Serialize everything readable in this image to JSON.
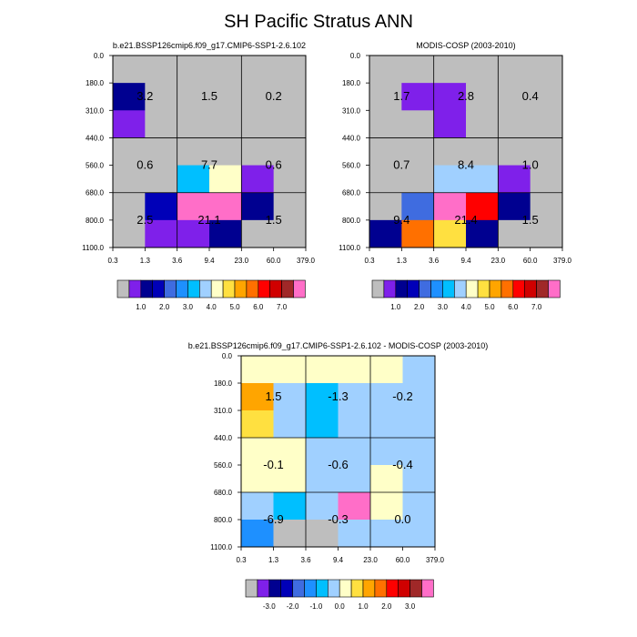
{
  "title": "SH Pacific Stratus ANN",
  "colors": {
    "background": "#ffffff",
    "missing": "#bebebe",
    "grid": "#000000"
  },
  "colormaps": {
    "absolute": {
      "colors": [
        "#bebebe",
        "#7f20ea",
        "#000090",
        "#0000b8",
        "#3f6ce0",
        "#1e90ff",
        "#00bfff",
        "#a0d0ff",
        "#ffffc8",
        "#ffe040",
        "#ffa500",
        "#ff7000",
        "#ff0000",
        "#d00000",
        "#a02828",
        "#ff6ec8"
      ],
      "tick_labels": [
        "1.0",
        "2.0",
        "3.0",
        "4.0",
        "5.0",
        "6.0",
        "7.0"
      ],
      "tick_after_box": [
        2,
        4,
        6,
        8,
        10,
        12,
        14
      ]
    },
    "difference": {
      "colors": [
        "#bebebe",
        "#7f20ea",
        "#000090",
        "#0000b8",
        "#3f6ce0",
        "#1e90ff",
        "#00bfff",
        "#a0d0ff",
        "#ffffc8",
        "#ffe040",
        "#ffa500",
        "#ff7000",
        "#ff0000",
        "#d00000",
        "#a02828",
        "#ff6ec8"
      ],
      "tick_labels": [
        "-3.0",
        "-2.0",
        "-1.0",
        "0.0",
        "1.0",
        "2.0",
        "3.0"
      ],
      "tick_after_box": [
        2,
        4,
        6,
        8,
        10,
        12,
        14
      ]
    }
  },
  "chart_data": [
    {
      "type": "heatmap",
      "title": "b.e21.BSSP126cmip6.f09_g17.CMIP6-SSP1-2.6.102",
      "x_tick_labels": [
        "0.3",
        "1.3",
        "3.6",
        "9.4",
        "23.0",
        "60.0",
        "379.0"
      ],
      "y_tick_labels": [
        "0.0",
        "180.0",
        "310.0",
        "440.0",
        "560.0",
        "680.0",
        "800.0",
        "1100.0"
      ],
      "cell_colors": [
        [
          "missing",
          "missing",
          "missing",
          "missing",
          "missing",
          "missing"
        ],
        [
          "#000090",
          "missing",
          "missing",
          "missing",
          "missing",
          "missing"
        ],
        [
          "#7f20ea",
          "missing",
          "missing",
          "missing",
          "missing",
          "missing"
        ],
        [
          "missing",
          "missing",
          "missing",
          "missing",
          "missing",
          "missing"
        ],
        [
          "missing",
          "missing",
          "#00bfff",
          "#ffffc8",
          "#7f20ea",
          "missing"
        ],
        [
          "missing",
          "#0000b8",
          "#ff6ec8",
          "#ff6ec8",
          "#000090",
          "missing"
        ],
        [
          "missing",
          "#7f20ea",
          "#7f20ea",
          "#000090",
          "missing",
          "missing"
        ]
      ],
      "block_values": [
        [
          "3.2",
          "1.5",
          "0.2"
        ],
        [
          "0.6",
          "7.7",
          "0.6"
        ],
        [
          "2.5",
          "21.1",
          "1.5"
        ]
      ]
    },
    {
      "type": "heatmap",
      "title": "MODIS-COSP (2003-2010)",
      "x_tick_labels": [
        "0.3",
        "1.3",
        "3.6",
        "9.4",
        "23.0",
        "60.0",
        "379.0"
      ],
      "y_tick_labels": [
        "0.0",
        "180.0",
        "310.0",
        "440.0",
        "560.0",
        "680.0",
        "800.0",
        "1100.0"
      ],
      "cell_colors": [
        [
          "missing",
          "missing",
          "missing",
          "missing",
          "missing",
          "missing"
        ],
        [
          "missing",
          "#7f20ea",
          "#7f20ea",
          "missing",
          "missing",
          "missing"
        ],
        [
          "missing",
          "missing",
          "#7f20ea",
          "missing",
          "missing",
          "missing"
        ],
        [
          "missing",
          "missing",
          "missing",
          "missing",
          "missing",
          "missing"
        ],
        [
          "missing",
          "missing",
          "#a0d0ff",
          "#a0d0ff",
          "#7f20ea",
          "missing"
        ],
        [
          "missing",
          "#3f6ce0",
          "#ff6ec8",
          "#ff0000",
          "#000090",
          "missing"
        ],
        [
          "#000090",
          "#ff7000",
          "#ffe040",
          "#000090",
          "missing",
          "missing"
        ]
      ],
      "block_values": [
        [
          "1.7",
          "2.8",
          "0.4"
        ],
        [
          "0.7",
          "8.4",
          "1.0"
        ],
        [
          "9.4",
          "21.4",
          "1.5"
        ]
      ]
    },
    {
      "type": "heatmap",
      "title": "b.e21.BSSP126cmip6.f09_g17.CMIP6-SSP1-2.6.102 - MODIS-COSP (2003-2010)",
      "x_tick_labels": [
        "0.3",
        "1.3",
        "3.6",
        "9.4",
        "23.0",
        "60.0",
        "379.0"
      ],
      "y_tick_labels": [
        "0.0",
        "180.0",
        "310.0",
        "440.0",
        "560.0",
        "680.0",
        "800.0",
        "1100.0"
      ],
      "cell_colors": [
        [
          "#ffffc8",
          "#ffffc8",
          "#ffffc8",
          "#ffffc8",
          "#ffffc8",
          "#a0d0ff"
        ],
        [
          "#ffa500",
          "#a0d0ff",
          "#00bfff",
          "#a0d0ff",
          "#a0d0ff",
          "#a0d0ff"
        ],
        [
          "#ffe040",
          "#a0d0ff",
          "#00bfff",
          "#a0d0ff",
          "#a0d0ff",
          "#a0d0ff"
        ],
        [
          "#ffffc8",
          "#ffffc8",
          "#a0d0ff",
          "#a0d0ff",
          "#a0d0ff",
          "#a0d0ff"
        ],
        [
          "#ffffc8",
          "#ffffc8",
          "#a0d0ff",
          "#a0d0ff",
          "#ffffc8",
          "#a0d0ff"
        ],
        [
          "#a0d0ff",
          "#00bfff",
          "#a0d0ff",
          "#ff6ec8",
          "#ffffc8",
          "#a0d0ff"
        ],
        [
          "#1e90ff",
          "missing",
          "missing",
          "#a0d0ff",
          "#a0d0ff",
          "#a0d0ff"
        ]
      ],
      "block_values": [
        [
          "1.5",
          "-1.3",
          "-0.2"
        ],
        [
          "-0.1",
          "-0.6",
          "-0.4"
        ],
        [
          "-6.9",
          "-0.3",
          "0.0"
        ]
      ]
    }
  ]
}
